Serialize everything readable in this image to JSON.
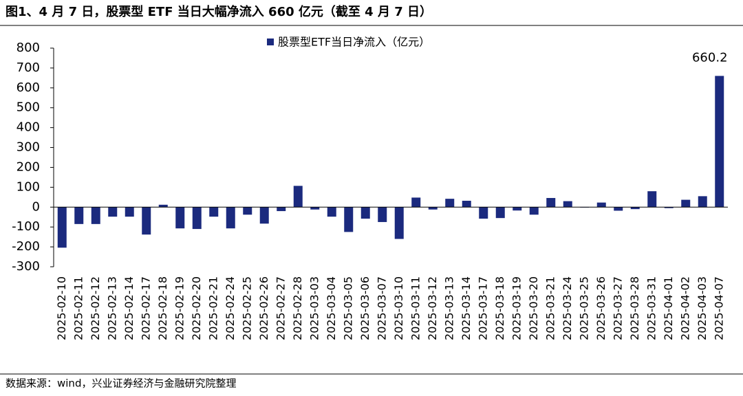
{
  "title": "图1、4 月 7 日，股票型 ETF 当日大幅净流入 660 亿元（截至 4 月 7 日）",
  "source": "数据来源：wind，兴业证券经济与金融研究院整理",
  "chart_data": {
    "type": "bar",
    "categories": [
      "2025-02-10",
      "2025-02-11",
      "2025-02-12",
      "2025-02-13",
      "2025-02-14",
      "2025-02-17",
      "2025-02-18",
      "2025-02-19",
      "2025-02-20",
      "2025-02-21",
      "2025-02-24",
      "2025-02-25",
      "2025-02-26",
      "2025-02-27",
      "2025-02-28",
      "2025-03-03",
      "2025-03-04",
      "2025-03-05",
      "2025-03-06",
      "2025-03-07",
      "2025-03-10",
      "2025-03-11",
      "2025-03-12",
      "2025-03-13",
      "2025-03-14",
      "2025-03-17",
      "2025-03-18",
      "2025-03-19",
      "2025-03-20",
      "2025-03-21",
      "2025-03-24",
      "2025-03-25",
      "2025-03-26",
      "2025-03-27",
      "2025-03-28",
      "2025-03-31",
      "2025-04-01",
      "2025-04-02",
      "2025-04-03",
      "2025-04-07"
    ],
    "series": [
      {
        "name": "股票型ETF当日净流入（亿元）",
        "color": "#1b2a7e",
        "values": [
          -204,
          -85,
          -85,
          -48,
          -48,
          -138,
          12,
          -107,
          -110,
          -48,
          -107,
          -38,
          -83,
          -20,
          107,
          -12,
          -48,
          -125,
          -58,
          -75,
          -160,
          48,
          -12,
          42,
          32,
          -58,
          -55,
          -17,
          -38,
          46,
          30,
          -2,
          23,
          -18,
          -10,
          80,
          -5,
          37,
          55,
          660.2
        ]
      }
    ],
    "label_last": true,
    "ylim": [
      -300,
      800
    ],
    "yticks": [
      -300,
      -200,
      -100,
      0,
      100,
      200,
      300,
      400,
      500,
      600,
      700,
      800
    ],
    "legend": "top"
  }
}
